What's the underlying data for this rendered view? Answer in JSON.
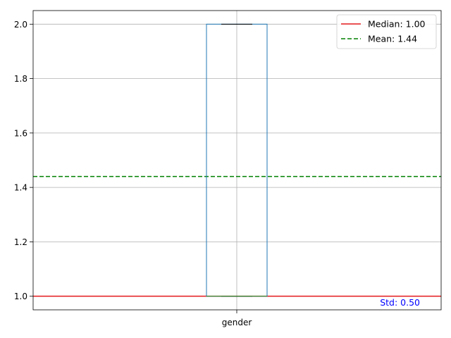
{
  "chart_data": {
    "type": "box",
    "categories": [
      "gender"
    ],
    "box": {
      "label": "gender",
      "q1": 1.0,
      "median": 1.0,
      "q3": 2.0,
      "whisker_low": 1.0,
      "whisker_high": 2.0
    },
    "ylim": [
      0.95,
      2.05
    ],
    "yticks": [
      1.0,
      1.2,
      1.4,
      1.6,
      1.8,
      2.0
    ],
    "ytick_labels": [
      "1.0",
      "1.2",
      "1.4",
      "1.6",
      "1.8",
      "2.0"
    ],
    "grid": true,
    "reference_lines": [
      {
        "label": "Median: 1.00",
        "value": 1.0,
        "color": "#e41a1c",
        "style": "solid"
      },
      {
        "label": "Mean: 1.44",
        "value": 1.44,
        "color": "#008000",
        "style": "dashed"
      }
    ],
    "annotation": {
      "text": "Std: 0.50",
      "color": "#0000ff"
    },
    "legend": {
      "location": "top-right"
    },
    "colors": {
      "box": "#1f77b4",
      "median": "#2ca02c",
      "cap": "#000000",
      "grid": "#b0b0b0"
    }
  }
}
